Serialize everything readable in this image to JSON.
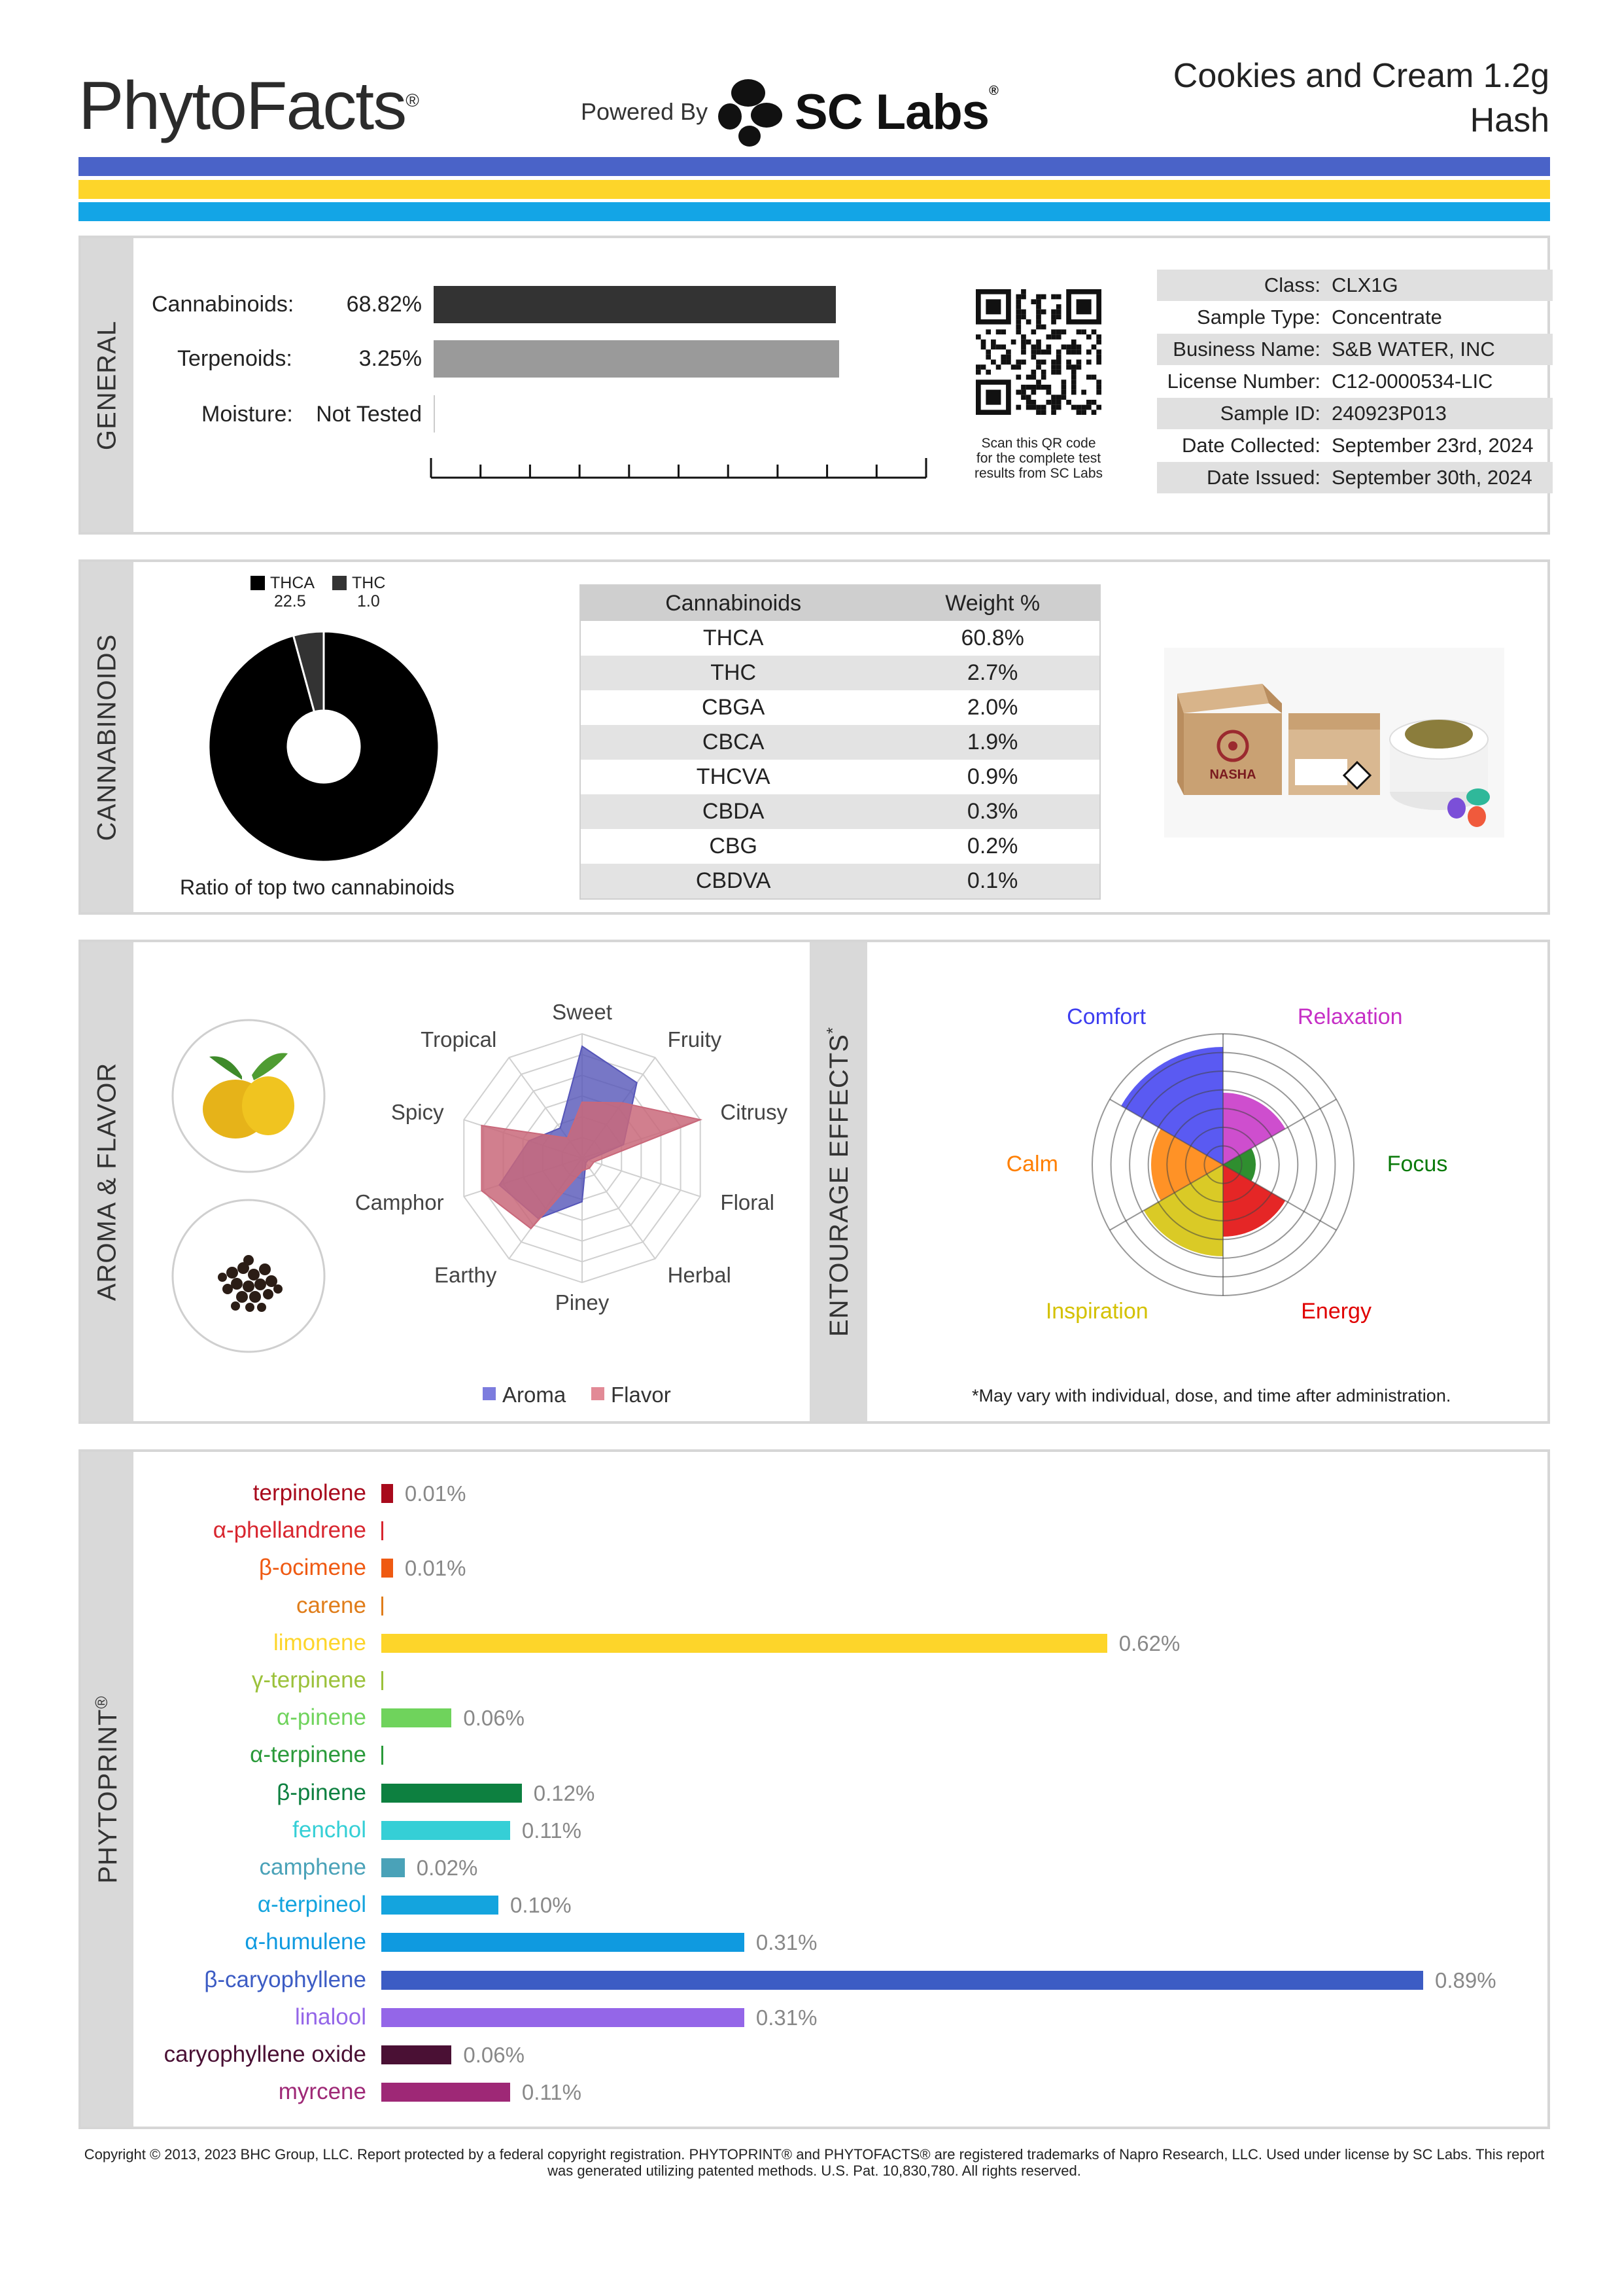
{
  "header": {
    "brand": "PhytoFacts",
    "brand_mark": "®",
    "powered_by": "Powered By",
    "lab_name": "SC Labs",
    "lab_mark": "®",
    "product_name": "Cookies and Cream 1.2g",
    "product_type": "Hash"
  },
  "colors": {
    "stripe_blue": "#4a63c8",
    "stripe_yellow": "#fdd52a",
    "stripe_cyan": "#13a5e6"
  },
  "general": {
    "section_label": "GENERAL",
    "cannabinoids_label": "Cannabinoids:",
    "cannabinoids_value": "68.82%",
    "cannabinoids_fraction": 0.6882,
    "terpenoids_label": "Terpenoids:",
    "terpenoids_value": "3.25%",
    "terpenoids_fraction": 0.0325,
    "moisture_label": "Moisture:",
    "moisture_value": "Not Tested",
    "qr_caption": [
      "Scan this QR code",
      "for the complete test",
      "results from SC Labs"
    ],
    "info": [
      {
        "key": "Class:",
        "value": "CLX1G"
      },
      {
        "key": "Sample Type:",
        "value": "Concentrate"
      },
      {
        "key": "Business Name:",
        "value": "S&B WATER, INC"
      },
      {
        "key": "License Number:",
        "value": "C12-0000534-LIC"
      },
      {
        "key": "Sample ID:",
        "value": "240923P013"
      },
      {
        "key": "Date Collected:",
        "value": "September 23rd, 2024"
      },
      {
        "key": "Date Issued:",
        "value": "September 30th, 2024"
      }
    ]
  },
  "cannabinoids": {
    "section_label": "CANNABINOIDS",
    "donut_caption": "Ratio of top two cannabinoids",
    "legend": [
      {
        "name": "THCA",
        "value": "22.5",
        "color": "#000000"
      },
      {
        "name": "THC",
        "value": "1.0",
        "color": "#333333"
      }
    ],
    "table_headers": [
      "Cannabinoids",
      "Weight %"
    ],
    "table_rows": [
      {
        "name": "THCA",
        "weight": "60.8%"
      },
      {
        "name": "THC",
        "weight": "2.7%"
      },
      {
        "name": "CBGA",
        "weight": "2.0%"
      },
      {
        "name": "CBCA",
        "weight": "1.9%"
      },
      {
        "name": "THCVA",
        "weight": "0.9%"
      },
      {
        "name": "CBDA",
        "weight": "0.3%"
      },
      {
        "name": "CBG",
        "weight": "0.2%"
      },
      {
        "name": "CBDVA",
        "weight": "0.1%"
      }
    ],
    "package_brand": "NASHA"
  },
  "aroma": {
    "section_label": "AROMA & FLAVOR",
    "icons": [
      "lemon-icon",
      "peppercorn-icon"
    ],
    "axes": [
      "Sweet",
      "Fruity",
      "Citrusy",
      "Floral",
      "Herbal",
      "Piney",
      "Earthy",
      "Camphor",
      "Spicy",
      "Tropical"
    ],
    "aroma_values": [
      0.9,
      0.75,
      0.35,
      0.05,
      0.05,
      0.35,
      0.6,
      0.7,
      0.45,
      0.3
    ],
    "flavor_values": [
      0.45,
      0.55,
      1.0,
      0.1,
      0.1,
      0.1,
      0.7,
      0.85,
      0.85,
      0.2
    ],
    "legend_aroma": "Aroma",
    "legend_flavor": "Flavor",
    "aroma_color": "#5555b8",
    "flavor_color": "#c9687a"
  },
  "entourage": {
    "section_label": "ENTOURAGE EFFECTS",
    "section_mark": "*",
    "effects": [
      {
        "name": "Relaxation",
        "value": 0.55,
        "color": "#c62fc6"
      },
      {
        "name": "Focus",
        "value": 0.25,
        "color": "#0a7a0a"
      },
      {
        "name": "Energy",
        "value": 0.55,
        "color": "#e00000"
      },
      {
        "name": "Inspiration",
        "value": 0.7,
        "color": "#d4c100"
      },
      {
        "name": "Calm",
        "value": 0.55,
        "color": "#ff7f00"
      },
      {
        "name": "Comfort",
        "value": 0.9,
        "color": "#3d3df0"
      }
    ],
    "note": "*May vary with individual, dose, and time after administration."
  },
  "phytoprint": {
    "section_label": "PHYTOPRINT",
    "section_mark": "®",
    "terpenes": [
      {
        "name": "terpinolene",
        "value": "0.01%",
        "amount": 0.01,
        "color": "#a80a1c"
      },
      {
        "name": "α-phellandrene",
        "value": "",
        "amount": 0.0,
        "color": "#d8262f"
      },
      {
        "name": "β-ocimene",
        "value": "0.01%",
        "amount": 0.01,
        "color": "#ef5a12"
      },
      {
        "name": "carene",
        "value": "",
        "amount": 0.0,
        "color": "#e07d1a"
      },
      {
        "name": "limonene",
        "value": "0.62%",
        "amount": 0.62,
        "color": "#fdd52a"
      },
      {
        "name": "γ-terpinene",
        "value": "",
        "amount": 0.0,
        "color": "#9bc13a"
      },
      {
        "name": "α-pinene",
        "value": "0.06%",
        "amount": 0.06,
        "color": "#6fd35c"
      },
      {
        "name": "α-terpinene",
        "value": "",
        "amount": 0.0,
        "color": "#2a9a3a"
      },
      {
        "name": "β-pinene",
        "value": "0.12%",
        "amount": 0.12,
        "color": "#0d8040"
      },
      {
        "name": "fenchol",
        "value": "0.11%",
        "amount": 0.11,
        "color": "#35cfd6"
      },
      {
        "name": "camphene",
        "value": "0.02%",
        "amount": 0.02,
        "color": "#4aa2b8"
      },
      {
        "name": "α-terpineol",
        "value": "0.10%",
        "amount": 0.1,
        "color": "#14a4de"
      },
      {
        "name": "α-humulene",
        "value": "0.31%",
        "amount": 0.31,
        "color": "#0f9ae0"
      },
      {
        "name": "β-caryophyllene",
        "value": "0.89%",
        "amount": 0.89,
        "color": "#3c5cc4"
      },
      {
        "name": "linalool",
        "value": "0.31%",
        "amount": 0.31,
        "color": "#9466e8"
      },
      {
        "name": "caryophyllene oxide",
        "value": "0.06%",
        "amount": 0.06,
        "color": "#4a1034"
      },
      {
        "name": "myrcene",
        "value": "0.11%",
        "amount": 0.11,
        "color": "#9e2876"
      }
    ]
  },
  "footer": {
    "copyright": "Copyright © 2013, 2023 BHC Group, LLC. Report protected by a federal copyright registration. PHYTOPRINT® and PHYTOFACTS® are registered trademarks of Napro Research, LLC. Used under license by SC Labs. This report was generated utilizing patented methods. U.S. Pat. 10,830,780. All rights reserved."
  }
}
